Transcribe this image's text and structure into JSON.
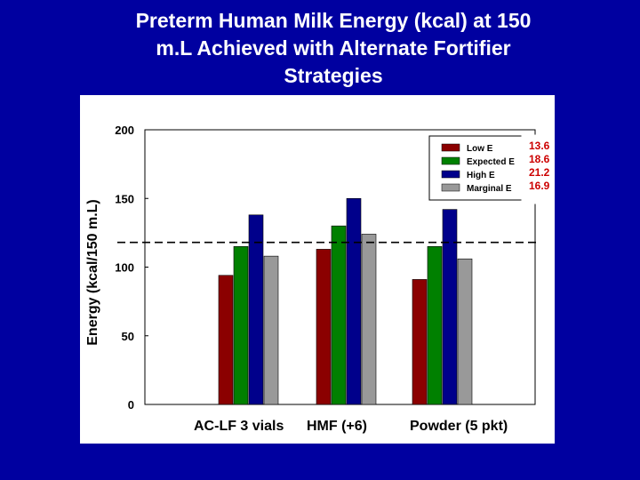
{
  "slide": {
    "title_lines": [
      "Preterm Human Milk Energy (kcal) at 150",
      "m.L Achieved with  Alternate Fortifier",
      "Strategies"
    ]
  },
  "chart_data": {
    "type": "bar",
    "title": "",
    "xlabel": "",
    "ylabel": "Energy (kcal/150 m.L)",
    "ylim": [
      0,
      200
    ],
    "yticks": [
      0,
      50,
      100,
      150,
      200
    ],
    "categories": [
      "AC-LF 3 vials",
      "HMF (+6)",
      "Powder (5 pkt)"
    ],
    "series": [
      {
        "name": "Low E",
        "color": "#8b0000",
        "values": [
          94,
          113,
          91
        ]
      },
      {
        "name": "Expected E",
        "color": "#008000",
        "values": [
          115,
          130,
          115
        ]
      },
      {
        "name": "High E",
        "color": "#00008b",
        "values": [
          138,
          150,
          142
        ]
      },
      {
        "name": "Marginal E",
        "color": "#999999",
        "values": [
          108,
          124,
          106
        ]
      }
    ],
    "reference_line": {
      "value": 118,
      "style": "dashed"
    },
    "legend": {
      "placement": "top-right"
    },
    "side_annotations": [
      "13.6",
      "18.6",
      "21.2",
      "16.9"
    ],
    "annotation_color": "#cc0000",
    "grid": false
  }
}
